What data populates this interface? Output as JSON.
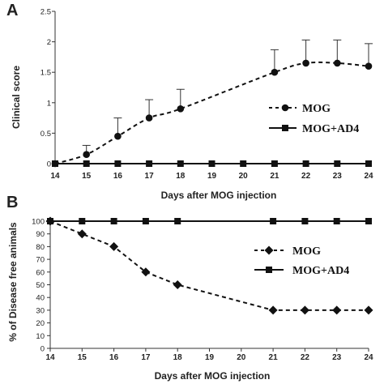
{
  "chart_data": [
    {
      "panel": "A",
      "type": "line",
      "ylabel": "Clinical score",
      "xlabel": "Days after MOG injection",
      "x": [
        14,
        15,
        16,
        17,
        18,
        19,
        20,
        21,
        22,
        23,
        24
      ],
      "xlim": [
        14,
        24
      ],
      "ylim": [
        0,
        2.5
      ],
      "yticks": [
        "0",
        "0.5",
        "1",
        "1.5",
        "2",
        "2.5"
      ],
      "yticks_values": [
        0,
        0.5,
        1,
        1.5,
        2,
        2.5
      ],
      "series": [
        {
          "name": "MOG",
          "marker": "circle",
          "line": "dashed",
          "points": [
            [
              14,
              0
            ],
            [
              15,
              0.15
            ],
            [
              16,
              0.45
            ],
            [
              17,
              0.75
            ],
            [
              18,
              0.9
            ],
            [
              21,
              1.5
            ],
            [
              22,
              1.65
            ],
            [
              23,
              1.65
            ],
            [
              24,
              1.6
            ]
          ],
          "error": [
            [
              15,
              0.3
            ],
            [
              16,
              0.75
            ],
            [
              17,
              1.05
            ],
            [
              18,
              1.22
            ],
            [
              21,
              1.87
            ],
            [
              22,
              2.03
            ],
            [
              23,
              2.03
            ],
            [
              24,
              1.97
            ]
          ]
        },
        {
          "name": "MOG+AD4",
          "marker": "square",
          "line": "solid",
          "points": [
            [
              14,
              0
            ],
            [
              15,
              0
            ],
            [
              16,
              0
            ],
            [
              17,
              0
            ],
            [
              18,
              0
            ],
            [
              19,
              0
            ],
            [
              20,
              0
            ],
            [
              21,
              0
            ],
            [
              22,
              0
            ],
            [
              23,
              0
            ],
            [
              24,
              0
            ]
          ]
        }
      ],
      "legend_position": "right"
    },
    {
      "panel": "B",
      "type": "line",
      "ylabel": "% of Disease free animals",
      "xlabel": "Days after MOG injection",
      "x": [
        14,
        15,
        16,
        17,
        18,
        19,
        20,
        21,
        22,
        23,
        24
      ],
      "xlim": [
        14,
        24
      ],
      "ylim": [
        0,
        100
      ],
      "yticks": [
        "0",
        "10",
        "20",
        "30",
        "40",
        "50",
        "60",
        "70",
        "80",
        "90",
        "100"
      ],
      "yticks_values": [
        0,
        10,
        20,
        30,
        40,
        50,
        60,
        70,
        80,
        90,
        100
      ],
      "series": [
        {
          "name": "MOG",
          "marker": "diamond",
          "line": "dashed",
          "points": [
            [
              14,
              100
            ],
            [
              15,
              90
            ],
            [
              16,
              80
            ],
            [
              17,
              60
            ],
            [
              18,
              50
            ],
            [
              21,
              30
            ],
            [
              22,
              30
            ],
            [
              23,
              30
            ],
            [
              24,
              30
            ]
          ]
        },
        {
          "name": "MOG+AD4",
          "marker": "square",
          "line": "solid",
          "points": [
            [
              14,
              100
            ],
            [
              15,
              100
            ],
            [
              16,
              100
            ],
            [
              17,
              100
            ],
            [
              18,
              100
            ],
            [
              21,
              100
            ],
            [
              22,
              100
            ],
            [
              23,
              100
            ],
            [
              24,
              100
            ]
          ]
        }
      ],
      "legend_position": "right"
    }
  ]
}
